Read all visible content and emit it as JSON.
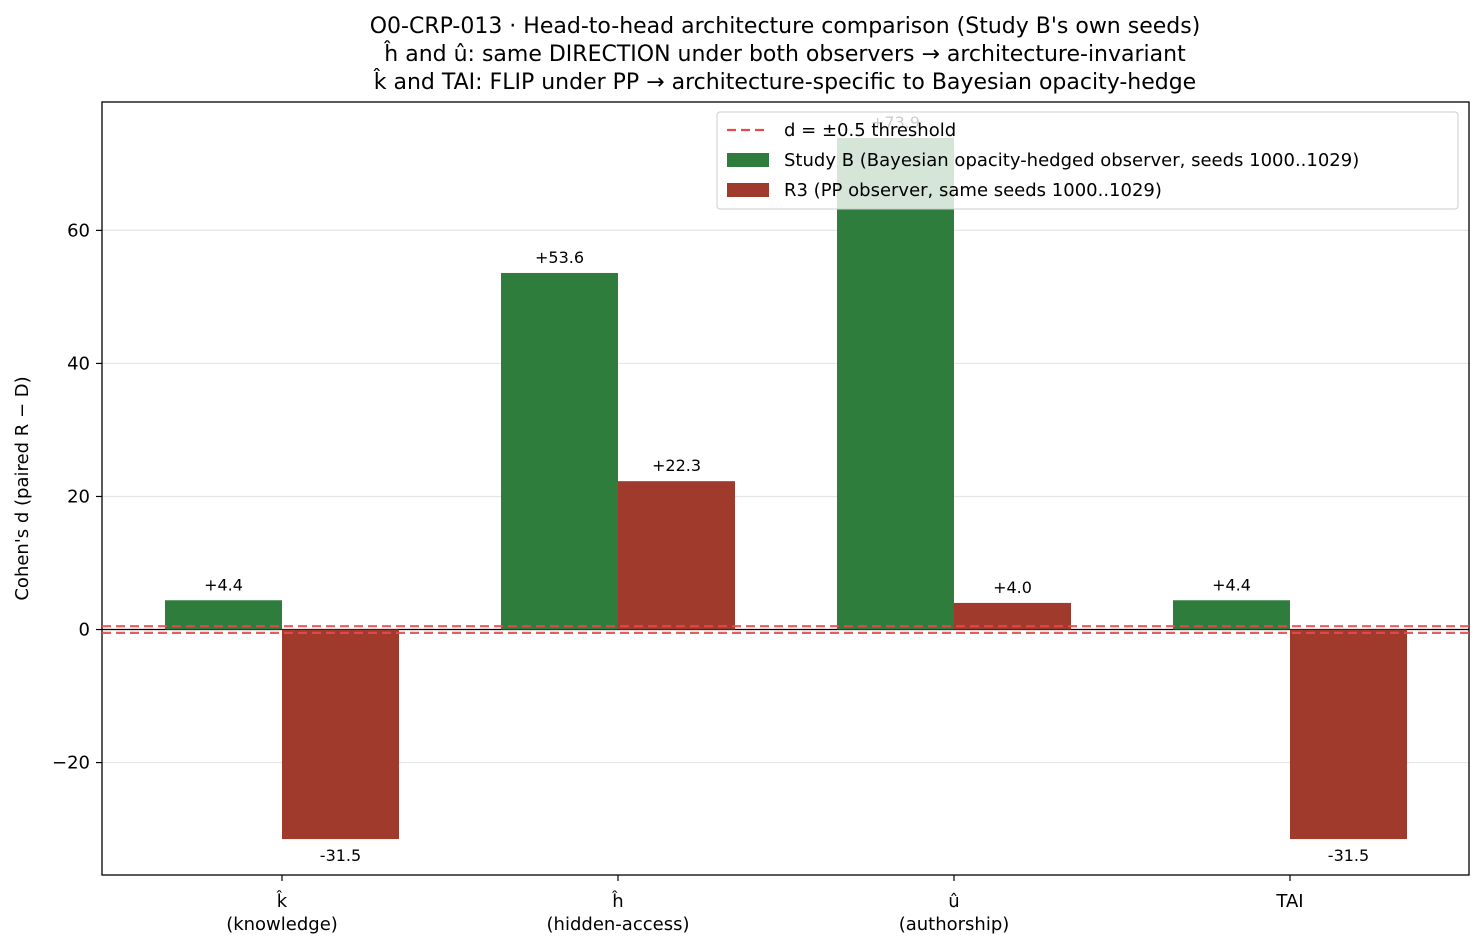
{
  "chart_data": {
    "type": "bar",
    "title_lines": [
      "O0-CRP-013 · Head-to-head architecture comparison (Study B's own seeds)",
      "ĥ and û: same DIRECTION under both observers → architecture-invariant",
      "k̂ and TAI: FLIP under PP → architecture-specific to Bayesian opacity-hedge"
    ],
    "ylabel": "Cohen's d (paired R − D)",
    "xlabel": "",
    "categories": [
      {
        "symbol": "k̂",
        "name": "(knowledge)"
      },
      {
        "symbol": "ĥ",
        "name": "(hidden-access)"
      },
      {
        "symbol": "û",
        "name": "(authorship)"
      },
      {
        "symbol": "TAI",
        "name": ""
      }
    ],
    "series": [
      {
        "name": "Study B (Bayesian opacity-hedged observer, seeds 1000..1029)",
        "color": "#2e7d3c",
        "values": [
          4.4,
          53.6,
          73.9,
          4.4
        ],
        "labels": [
          "+4.4",
          "+53.6",
          "+73.9",
          "+4.4"
        ]
      },
      {
        "name": "R3 (PP observer, same seeds 1000..1029)",
        "color": "#a03a2c",
        "values": [
          -31.5,
          22.3,
          4.0,
          -31.5
        ],
        "labels": [
          "-31.5",
          "+22.3",
          "+4.0",
          "-31.5"
        ]
      }
    ],
    "threshold": {
      "label": "d = ±0.5 threshold",
      "values": [
        0.5,
        -0.5
      ],
      "color": "#e84a4a"
    },
    "ylim": [
      -36.9,
      79.3
    ],
    "yticks": [
      -20,
      0,
      20,
      40,
      60
    ],
    "ytick_labels": [
      "−20",
      "0",
      "20",
      "40",
      "60"
    ],
    "grid": true,
    "legend_position": "top-right"
  }
}
